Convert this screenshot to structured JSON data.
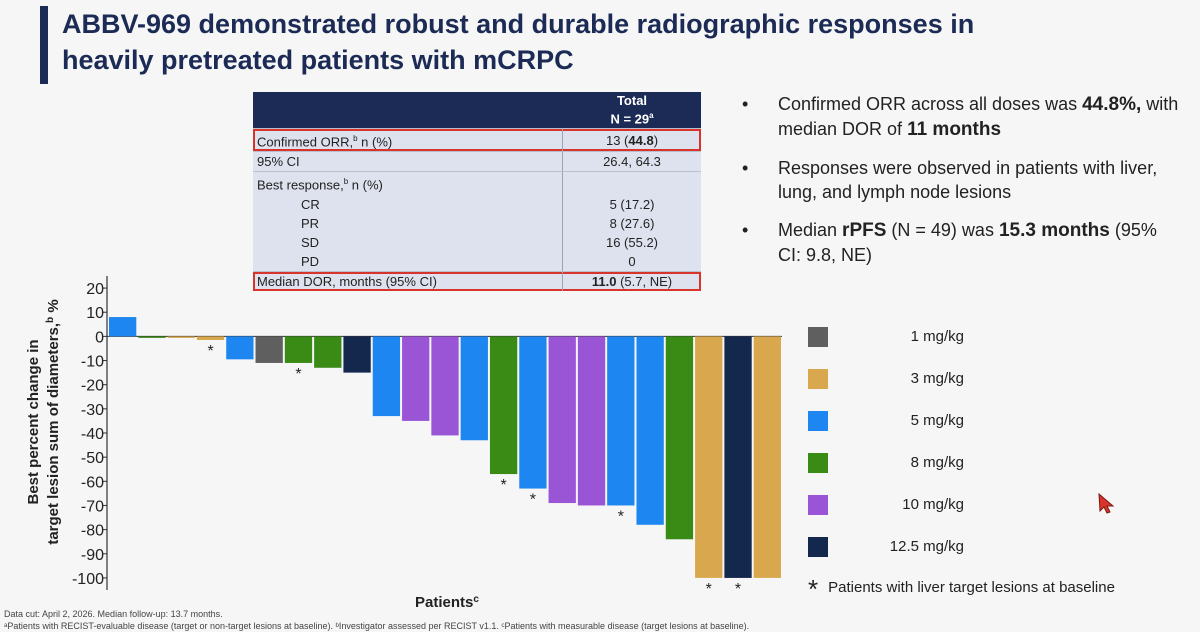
{
  "title": {
    "line1": "ABBV-969 demonstrated robust and durable radiographic responses in",
    "line2": "heavily pretreated patients with mCRPC"
  },
  "table": {
    "header_total": "Total",
    "header_n": "N = 29",
    "header_n_sup": "a",
    "rows": [
      {
        "label": "Confirmed ORR,",
        "sup": "b",
        "label_suffix": " n (%)",
        "value": "13 (",
        "value_bold": "44.8",
        "value_suffix": ")"
      },
      {
        "label": "95% CI",
        "value": "26.4, 64.3"
      },
      {
        "label": "Best response,",
        "sup": "b",
        "label_suffix": " n (%)",
        "value": ""
      },
      {
        "label": "CR",
        "value": "5 (17.2)"
      },
      {
        "label": "PR",
        "value": "8 (27.6)"
      },
      {
        "label": "SD",
        "value": "16 (55.2)"
      },
      {
        "label": "PD",
        "value": "0"
      },
      {
        "label": "Median DOR, months (95% CI)",
        "value": "",
        "value_bold": "11.0",
        "value_suffix": " (5.7, NE)"
      }
    ]
  },
  "bullets": [
    {
      "pre": "Confirmed ORR across all doses was ",
      "b1": "44.8%,",
      "mid": " with median DOR of ",
      "b2": "11 months",
      "post": ""
    },
    {
      "pre": "Responses were observed in patients with liver, lung, and lymph node lesions",
      "b1": "",
      "mid": "",
      "b2": "",
      "post": ""
    },
    {
      "pre": "Median ",
      "b1": "rPFS",
      "mid": " (N = 49) was ",
      "b2": "15.3 months",
      "post": " (95% CI: 9.8, NE)"
    }
  ],
  "legend": {
    "items": [
      {
        "label": "1 mg/kg",
        "color": "#5f5f5f"
      },
      {
        "label": "3 mg/kg",
        "color": "#d9a84e"
      },
      {
        "label": "5 mg/kg",
        "color": "#1e86f0"
      },
      {
        "label": "8 mg/kg",
        "color": "#3a8a16"
      },
      {
        "label": "10 mg/kg",
        "color": "#9a55d6"
      },
      {
        "label": "12.5 mg/kg",
        "color": "#14274d"
      }
    ],
    "liver_star": "*",
    "liver_note": "Patients with liver target lesions at baseline"
  },
  "chart_data": {
    "type": "bar",
    "ylabel_line1": "Best percent change in",
    "ylabel_line2": "target lesion sum of diameters,",
    "ylabel_sup": "b",
    "ylabel_suffix": " %",
    "xlabel": "Patients",
    "xlabel_sup": "c",
    "ylim": [
      -105,
      25
    ],
    "yticks": [
      20,
      10,
      0,
      -10,
      -20,
      -30,
      -40,
      -50,
      -60,
      -70,
      -80,
      -90,
      -100
    ],
    "grid": false,
    "values": [
      8,
      -0.5,
      -0.5,
      -1.5,
      -9.5,
      -11,
      -11,
      -13,
      -15,
      -33,
      -35,
      -41,
      -43,
      -57,
      -63,
      -69,
      -70,
      -70,
      -78,
      -84,
      -100,
      -100,
      -100
    ],
    "dose": [
      "5 mg/kg",
      "8 mg/kg",
      "3 mg/kg",
      "3 mg/kg",
      "5 mg/kg",
      "1 mg/kg",
      "8 mg/kg",
      "8 mg/kg",
      "12.5 mg/kg",
      "5 mg/kg",
      "10 mg/kg",
      "10 mg/kg",
      "5 mg/kg",
      "8 mg/kg",
      "5 mg/kg",
      "10 mg/kg",
      "10 mg/kg",
      "5 mg/kg",
      "5 mg/kg",
      "8 mg/kg",
      "3 mg/kg",
      "12.5 mg/kg",
      "3 mg/kg"
    ],
    "liver": [
      false,
      false,
      false,
      true,
      false,
      false,
      true,
      false,
      false,
      false,
      false,
      false,
      false,
      true,
      true,
      false,
      false,
      true,
      false,
      false,
      true,
      true,
      false
    ],
    "star_symbol": "*"
  },
  "footnotes": [
    "Data cut: April 2, 2026. Median follow-up: 13.7 months.",
    "ᵃPatients with RECIST-evaluable disease (target or non-target lesions at baseline). ᵇInvestigator assessed per RECIST v1.1. ᶜPatients with measurable disease (target lesions at baseline)."
  ]
}
